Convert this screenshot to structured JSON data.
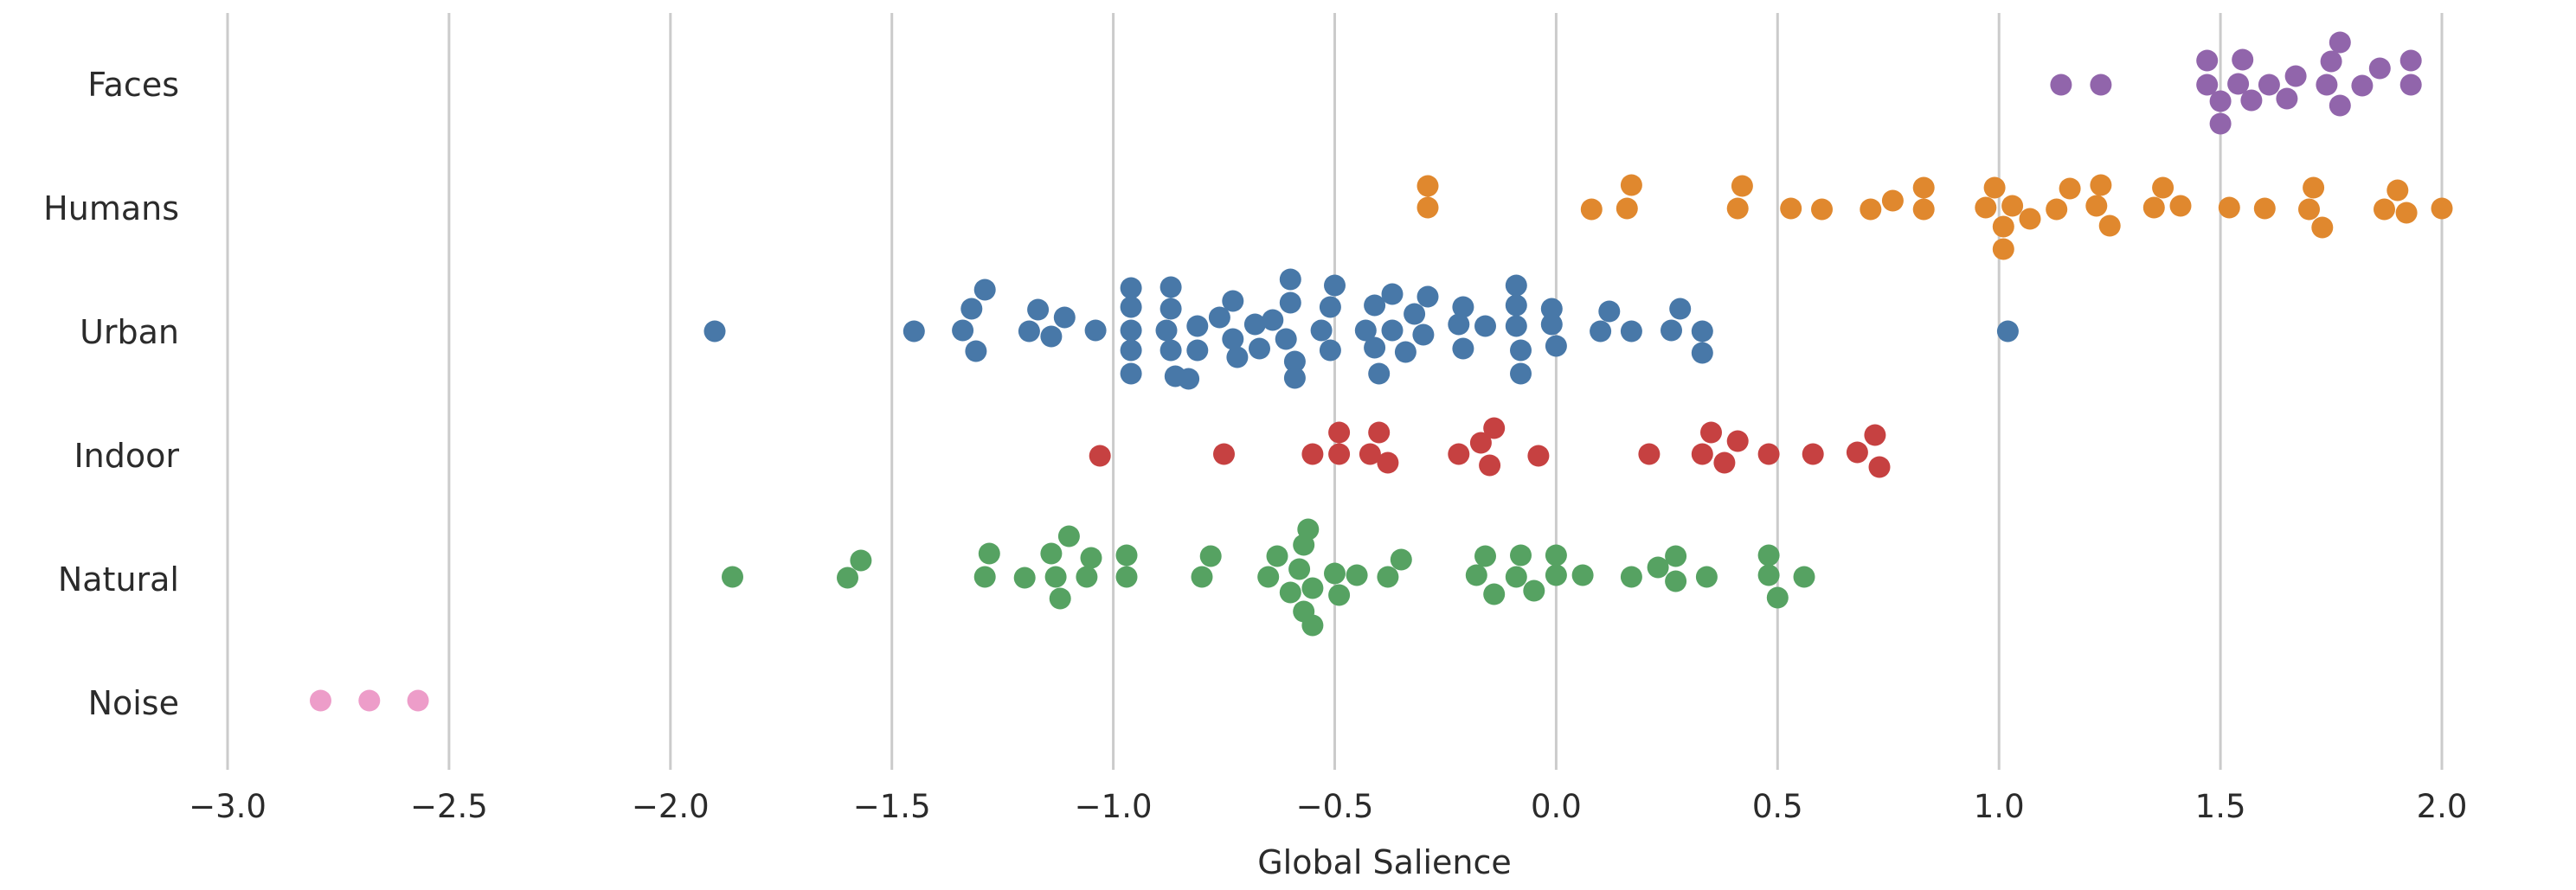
{
  "figure": {
    "background": "#ffffff",
    "grid_color": "#cbcbcb",
    "text_color": "#2b2b2b"
  },
  "chart_data": {
    "type": "scatter",
    "subtype": "strip-swarm",
    "title": "",
    "xlabel": "Global Salience",
    "ylabel": "",
    "grid": "vertical-only",
    "legend": "none",
    "xlim": [
      -3.25,
      2.3
    ],
    "x_ticks": [
      -3.0,
      -2.5,
      -2.0,
      -1.5,
      -1.0,
      -0.5,
      0.0,
      0.5,
      1.0,
      1.5,
      2.0
    ],
    "x_tick_labels": [
      "−3.0",
      "−2.5",
      "−2.0",
      "−1.5",
      "−1.0",
      "−0.5",
      "0.0",
      "0.5",
      "1.0",
      "1.5",
      "2.0"
    ],
    "categories": [
      "Faces",
      "Humans",
      "Urban",
      "Indoor",
      "Natural",
      "Noise"
    ],
    "series": [
      {
        "name": "Faces",
        "color": "#9165ab",
        "points": [
          [
            1.14,
            0
          ],
          [
            1.23,
            0
          ],
          [
            1.47,
            -28
          ],
          [
            1.47,
            0
          ],
          [
            1.5,
            19
          ],
          [
            1.5,
            45
          ],
          [
            1.55,
            -29
          ],
          [
            1.54,
            -1
          ],
          [
            1.57,
            18
          ],
          [
            1.61,
            0
          ],
          [
            1.65,
            16
          ],
          [
            1.67,
            -10
          ],
          [
            1.77,
            -49
          ],
          [
            1.75,
            -27
          ],
          [
            1.74,
            0
          ],
          [
            1.77,
            24
          ],
          [
            1.82,
            1
          ],
          [
            1.86,
            -19
          ],
          [
            1.93,
            -28
          ],
          [
            1.93,
            0
          ]
        ]
      },
      {
        "name": "Humans",
        "color": "#e0882e",
        "points": [
          [
            -0.29,
            -26
          ],
          [
            -0.29,
            -1
          ],
          [
            0.08,
            1
          ],
          [
            0.17,
            -27
          ],
          [
            0.16,
            0
          ],
          [
            0.42,
            -26
          ],
          [
            0.41,
            0
          ],
          [
            0.53,
            0
          ],
          [
            0.6,
            1
          ],
          [
            0.71,
            1
          ],
          [
            0.76,
            -9
          ],
          [
            0.83,
            -24
          ],
          [
            0.83,
            1
          ],
          [
            0.99,
            -24
          ],
          [
            0.97,
            -1
          ],
          [
            1.03,
            -3
          ],
          [
            1.01,
            21
          ],
          [
            1.01,
            47
          ],
          [
            1.07,
            12
          ],
          [
            1.13,
            1
          ],
          [
            1.16,
            -23
          ],
          [
            1.23,
            -27
          ],
          [
            1.22,
            -3
          ],
          [
            1.25,
            20
          ],
          [
            1.37,
            -24
          ],
          [
            1.35,
            -1
          ],
          [
            1.41,
            -3
          ],
          [
            1.52,
            -1
          ],
          [
            1.6,
            0
          ],
          [
            1.71,
            -24
          ],
          [
            1.7,
            1
          ],
          [
            1.73,
            22
          ],
          [
            1.87,
            1
          ],
          [
            1.9,
            -21
          ],
          [
            1.92,
            5
          ],
          [
            2.0,
            0
          ]
        ]
      },
      {
        "name": "Urban",
        "color": "#4878a8",
        "points": [
          [
            -1.9,
            -1
          ],
          [
            -1.45,
            -1
          ],
          [
            -1.29,
            -49
          ],
          [
            -1.32,
            -27
          ],
          [
            -1.34,
            -2
          ],
          [
            -1.31,
            22
          ],
          [
            -1.17,
            -26
          ],
          [
            -1.19,
            -1
          ],
          [
            -1.14,
            5
          ],
          [
            -1.11,
            -17
          ],
          [
            -1.04,
            -2
          ],
          [
            -0.96,
            -51
          ],
          [
            -0.96,
            -29
          ],
          [
            -0.96,
            -2
          ],
          [
            -0.96,
            21
          ],
          [
            -0.96,
            48
          ],
          [
            -0.87,
            -52
          ],
          [
            -0.87,
            -27
          ],
          [
            -0.88,
            -2
          ],
          [
            -0.87,
            21
          ],
          [
            -0.86,
            51
          ],
          [
            -0.83,
            54
          ],
          [
            -0.81,
            -7
          ],
          [
            -0.81,
            21
          ],
          [
            -0.76,
            -17
          ],
          [
            -0.73,
            -36
          ],
          [
            -0.73,
            8
          ],
          [
            -0.72,
            29
          ],
          [
            -0.68,
            -9
          ],
          [
            -0.67,
            19
          ],
          [
            -0.64,
            -14
          ],
          [
            -0.6,
            -61
          ],
          [
            -0.6,
            -34
          ],
          [
            -0.61,
            8
          ],
          [
            -0.59,
            34
          ],
          [
            -0.59,
            53
          ],
          [
            -0.5,
            -54
          ],
          [
            -0.51,
            -29
          ],
          [
            -0.53,
            -2
          ],
          [
            -0.51,
            21
          ],
          [
            -0.41,
            -31
          ],
          [
            -0.43,
            -2
          ],
          [
            -0.41,
            18
          ],
          [
            -0.4,
            48
          ],
          [
            -0.37,
            -44
          ],
          [
            -0.37,
            -2
          ],
          [
            -0.34,
            23
          ],
          [
            -0.32,
            -21
          ],
          [
            -0.3,
            3
          ],
          [
            -0.29,
            -41
          ],
          [
            -0.21,
            -29
          ],
          [
            -0.22,
            -9
          ],
          [
            -0.21,
            19
          ],
          [
            -0.16,
            -7
          ],
          [
            -0.09,
            -54
          ],
          [
            -0.09,
            -31
          ],
          [
            -0.09,
            -7
          ],
          [
            -0.08,
            21
          ],
          [
            -0.08,
            48
          ],
          [
            -0.01,
            -27
          ],
          [
            -0.01,
            -9
          ],
          [
            0.0,
            16
          ],
          [
            0.1,
            -1
          ],
          [
            0.12,
            -24
          ],
          [
            0.17,
            -1
          ],
          [
            0.26,
            -2
          ],
          [
            0.28,
            -27
          ],
          [
            0.33,
            -1
          ],
          [
            0.33,
            24
          ],
          [
            1.02,
            -1
          ]
        ]
      },
      {
        "name": "Indoor",
        "color": "#c64141",
        "points": [
          [
            -1.03,
            0
          ],
          [
            -0.75,
            -2
          ],
          [
            -0.55,
            -2
          ],
          [
            -0.49,
            -27
          ],
          [
            -0.49,
            -2
          ],
          [
            -0.4,
            -27
          ],
          [
            -0.42,
            -2
          ],
          [
            -0.38,
            8
          ],
          [
            -0.22,
            -2
          ],
          [
            -0.17,
            -15
          ],
          [
            -0.14,
            -32
          ],
          [
            -0.15,
            11
          ],
          [
            -0.04,
            0
          ],
          [
            0.21,
            -2
          ],
          [
            0.33,
            -2
          ],
          [
            0.35,
            -27
          ],
          [
            0.38,
            8
          ],
          [
            0.41,
            -17
          ],
          [
            0.48,
            -2
          ],
          [
            0.58,
            -2
          ],
          [
            0.68,
            -4
          ],
          [
            0.72,
            -24
          ],
          [
            0.73,
            13
          ]
        ]
      },
      {
        "name": "Natural",
        "color": "#56a262",
        "points": [
          [
            -1.86,
            -3
          ],
          [
            -1.6,
            -2
          ],
          [
            -1.57,
            -22
          ],
          [
            -1.28,
            -30
          ],
          [
            -1.29,
            -3
          ],
          [
            -1.2,
            -2
          ],
          [
            -1.14,
            -30
          ],
          [
            -1.13,
            -3
          ],
          [
            -1.1,
            -50
          ],
          [
            -1.06,
            -3
          ],
          [
            -1.12,
            22
          ],
          [
            -1.05,
            -25
          ],
          [
            -0.97,
            -28
          ],
          [
            -0.97,
            -3
          ],
          [
            -0.78,
            -27
          ],
          [
            -0.8,
            -3
          ],
          [
            -0.63,
            -27
          ],
          [
            -0.65,
            -3
          ],
          [
            -0.57,
            -40
          ],
          [
            -0.56,
            -58
          ],
          [
            -0.58,
            -12
          ],
          [
            -0.6,
            15
          ],
          [
            -0.55,
            10
          ],
          [
            -0.5,
            -7
          ],
          [
            -0.49,
            18
          ],
          [
            -0.57,
            37
          ],
          [
            -0.55,
            53
          ],
          [
            -0.45,
            -5
          ],
          [
            -0.38,
            -3
          ],
          [
            -0.35,
            -23
          ],
          [
            -0.16,
            -27
          ],
          [
            -0.18,
            -5
          ],
          [
            -0.14,
            17
          ],
          [
            -0.08,
            -28
          ],
          [
            -0.09,
            -3
          ],
          [
            -0.05,
            13
          ],
          [
            0.0,
            -28
          ],
          [
            0.0,
            -5
          ],
          [
            0.06,
            -5
          ],
          [
            0.17,
            -3
          ],
          [
            0.23,
            -14
          ],
          [
            0.27,
            -27
          ],
          [
            0.27,
            2
          ],
          [
            0.34,
            -3
          ],
          [
            0.48,
            -28
          ],
          [
            0.48,
            -5
          ],
          [
            0.5,
            21
          ],
          [
            0.56,
            -3
          ]
        ]
      },
      {
        "name": "Noise",
        "color": "#ed9dc9",
        "points": [
          [
            -2.79,
            -3
          ],
          [
            -2.68,
            -3
          ],
          [
            -2.57,
            -3
          ]
        ]
      }
    ]
  }
}
